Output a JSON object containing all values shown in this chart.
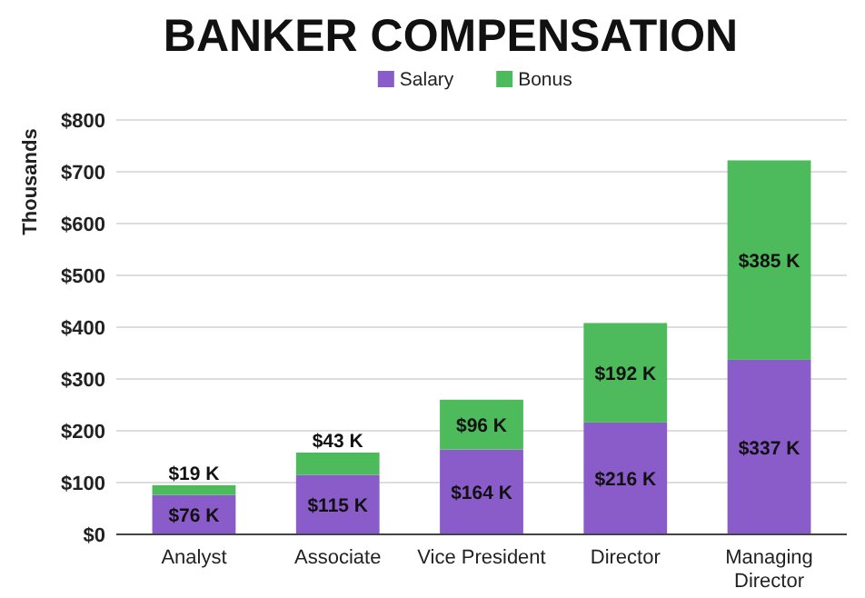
{
  "chart_data": {
    "type": "bar",
    "title": "BANKER COMPENSATION",
    "ylabel": "Thousands",
    "categories": [
      "Analyst",
      "Associate",
      "Vice President",
      "Director",
      "Managing Director"
    ],
    "stacked": true,
    "legend": "top",
    "grid": "y",
    "series": [
      {
        "name": "Salary",
        "color": "#8a5cc9",
        "values": [
          76,
          115,
          164,
          216,
          337
        ],
        "value_labels": [
          "$76 K",
          "$115 K",
          "$164 K",
          "$216 K",
          "$337 K"
        ]
      },
      {
        "name": "Bonus",
        "color": "#4dba5b",
        "values": [
          19,
          43,
          96,
          192,
          385
        ],
        "value_labels": [
          "$19 K",
          "$43 K",
          "$96 K",
          "$192 K",
          "$385 K"
        ]
      }
    ],
    "ylim": [
      0,
      800
    ],
    "yticks": [
      {
        "value": 0,
        "label": "$0"
      },
      {
        "value": 100,
        "label": "$100"
      },
      {
        "value": 200,
        "label": "$200"
      },
      {
        "value": 300,
        "label": "$300"
      },
      {
        "value": 400,
        "label": "$400"
      },
      {
        "value": 500,
        "label": "$500"
      },
      {
        "value": 600,
        "label": "$600"
      },
      {
        "value": 700,
        "label": "$700"
      },
      {
        "value": 800,
        "label": "$800"
      }
    ]
  }
}
